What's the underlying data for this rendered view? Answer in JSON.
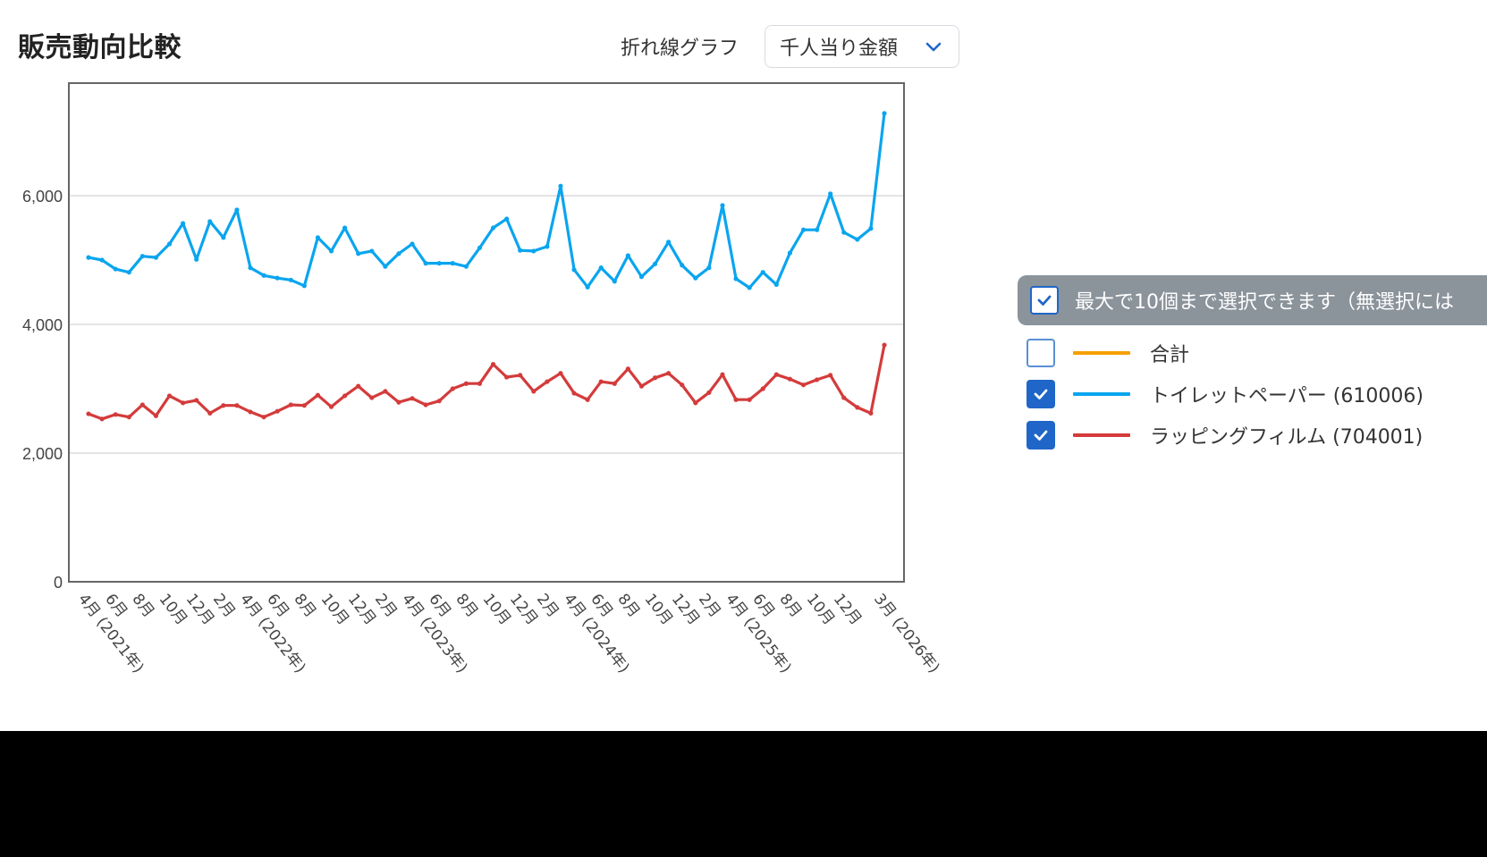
{
  "header": {
    "title": "販売動向比較",
    "chart_type_label": "折れ線グラフ",
    "metric_select": {
      "value": "千人当り金額",
      "icon": "chevron-down-icon"
    }
  },
  "legend": {
    "header_text": "最大で10個まで選択できます（無選択には",
    "header_checked": true,
    "items": [
      {
        "label": "合計",
        "color": "#f5a000",
        "checked": false
      },
      {
        "label": "トイレットペーパー (610006)",
        "color": "#0aa5ef",
        "checked": true
      },
      {
        "label": "ラッピングフィルム (704001)",
        "color": "#d43b3b",
        "checked": true
      }
    ]
  },
  "chart_data": {
    "type": "line",
    "title": "販売動向比較",
    "xlabel": "",
    "ylabel": "千人当り金額",
    "ylim": [
      0,
      7500
    ],
    "yticks": [
      0,
      2000,
      4000,
      6000
    ],
    "ytick_labels": [
      "0",
      "2,000",
      "4,000",
      "6,000"
    ],
    "grid": true,
    "legend_position": "right",
    "x": [
      "2021-04",
      "2021-05",
      "2021-06",
      "2021-07",
      "2021-08",
      "2021-09",
      "2021-10",
      "2021-11",
      "2021-12",
      "2022-01",
      "2022-02",
      "2022-03",
      "2022-04",
      "2022-05",
      "2022-06",
      "2022-07",
      "2022-08",
      "2022-09",
      "2022-10",
      "2022-11",
      "2022-12",
      "2023-01",
      "2023-02",
      "2023-03",
      "2023-04",
      "2023-05",
      "2023-06",
      "2023-07",
      "2023-08",
      "2023-09",
      "2023-10",
      "2023-11",
      "2023-12",
      "2024-01",
      "2024-02",
      "2024-03",
      "2024-04",
      "2024-05",
      "2024-06",
      "2024-07",
      "2024-08",
      "2024-09",
      "2024-10",
      "2024-11",
      "2024-12",
      "2025-01",
      "2025-02",
      "2025-03",
      "2025-04",
      "2025-05",
      "2025-06",
      "2025-07",
      "2025-08",
      "2025-09",
      "2025-10",
      "2025-11",
      "2025-12",
      "2026-01",
      "2026-02",
      "2026-03"
    ],
    "x_tick_labels": [
      {
        "index": 0,
        "label": "4月 (2021年)"
      },
      {
        "index": 2,
        "label": "6月"
      },
      {
        "index": 4,
        "label": "8月"
      },
      {
        "index": 6,
        "label": "10月"
      },
      {
        "index": 8,
        "label": "12月"
      },
      {
        "index": 10,
        "label": "2月"
      },
      {
        "index": 12,
        "label": "4月 (2022年)"
      },
      {
        "index": 14,
        "label": "6月"
      },
      {
        "index": 16,
        "label": "8月"
      },
      {
        "index": 18,
        "label": "10月"
      },
      {
        "index": 20,
        "label": "12月"
      },
      {
        "index": 22,
        "label": "2月"
      },
      {
        "index": 24,
        "label": "4月 (2023年)"
      },
      {
        "index": 26,
        "label": "6月"
      },
      {
        "index": 28,
        "label": "8月"
      },
      {
        "index": 30,
        "label": "10月"
      },
      {
        "index": 32,
        "label": "12月"
      },
      {
        "index": 34,
        "label": "2月"
      },
      {
        "index": 36,
        "label": "4月 (2024年)"
      },
      {
        "index": 38,
        "label": "6月"
      },
      {
        "index": 40,
        "label": "8月"
      },
      {
        "index": 42,
        "label": "10月"
      },
      {
        "index": 44,
        "label": "12月"
      },
      {
        "index": 46,
        "label": "2月"
      },
      {
        "index": 48,
        "label": "4月 (2025年)"
      },
      {
        "index": 50,
        "label": "6月"
      },
      {
        "index": 52,
        "label": "8月"
      },
      {
        "index": 54,
        "label": "10月"
      },
      {
        "index": 56,
        "label": "12月"
      },
      {
        "index": 59,
        "label": "3月 (2026年)"
      }
    ],
    "series": [
      {
        "name": "トイレットペーパー (610006)",
        "color": "#0aa5ef",
        "values": [
          5040,
          5000,
          4860,
          4810,
          5060,
          5040,
          5250,
          5570,
          5010,
          5600,
          5350,
          5780,
          4880,
          4760,
          4720,
          4690,
          4600,
          5350,
          5140,
          5500,
          5100,
          5140,
          4900,
          5100,
          5250,
          4950,
          4950,
          4950,
          4900,
          5190,
          5500,
          5640,
          5150,
          5140,
          5210,
          6150,
          4850,
          4580,
          4880,
          4670,
          5070,
          4740,
          4940,
          5280,
          4920,
          4720,
          4880,
          5850,
          4710,
          4570,
          4810,
          4620,
          5110,
          5470,
          5470,
          6030,
          5430,
          5320,
          5490,
          7280
        ]
      },
      {
        "name": "ラッピングフィルム (704001)",
        "color": "#d43b3b",
        "values": [
          2610,
          2530,
          2600,
          2560,
          2750,
          2580,
          2890,
          2780,
          2820,
          2620,
          2740,
          2740,
          2640,
          2560,
          2650,
          2750,
          2740,
          2900,
          2720,
          2890,
          3040,
          2860,
          2960,
          2790,
          2850,
          2750,
          2810,
          3000,
          3080,
          3080,
          3380,
          3180,
          3210,
          2960,
          3110,
          3240,
          2930,
          2830,
          3110,
          3080,
          3310,
          3040,
          3170,
          3240,
          3060,
          2780,
          2940,
          3220,
          2830,
          2830,
          3000,
          3220,
          3150,
          3060,
          3140,
          3210,
          2860,
          2710,
          2620,
          3680
        ]
      }
    ]
  }
}
